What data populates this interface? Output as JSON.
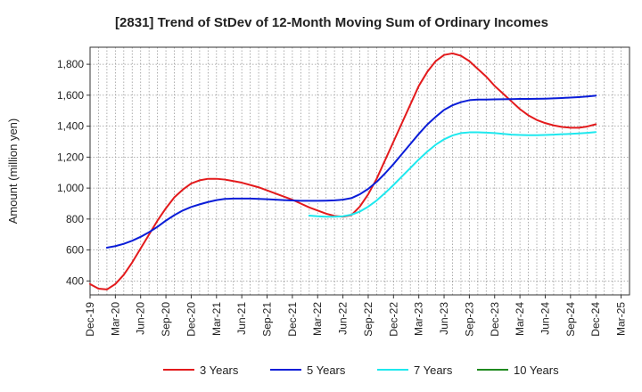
{
  "chart_data": {
    "type": "line",
    "title": "[2831]  Trend of StDev of 12-Month Moving Sum of Ordinary Incomes",
    "xlabel": "",
    "ylabel": "Amount (million yen)",
    "ylim": [
      310,
      1910
    ],
    "yticks": [
      400,
      600,
      800,
      1000,
      1200,
      1400,
      1600,
      1800
    ],
    "ytick_labels": [
      "400",
      "600",
      "800",
      "1,000",
      "1,200",
      "1,400",
      "1,600",
      "1,800"
    ],
    "x_min": 0,
    "x_max": 64,
    "xticks": [
      0,
      3,
      6,
      9,
      12,
      15,
      18,
      21,
      24,
      27,
      30,
      33,
      36,
      39,
      42,
      45,
      48,
      51,
      54,
      57,
      60,
      63
    ],
    "xtick_labels": [
      "Dec-19",
      "Mar-20",
      "Jun-20",
      "Sep-20",
      "Dec-20",
      "Mar-21",
      "Jun-21",
      "Sep-21",
      "Dec-21",
      "Mar-22",
      "Jun-22",
      "Sep-22",
      "Dec-22",
      "Mar-23",
      "Jun-23",
      "Sep-23",
      "Dec-23",
      "Mar-24",
      "Jun-24",
      "Sep-24",
      "Dec-24",
      "Mar-25"
    ],
    "grid": true,
    "legend_position": "bottom",
    "series": [
      {
        "name": "3 Years",
        "color": "#e31a1c",
        "x": [
          0,
          1,
          2,
          3,
          4,
          5,
          6,
          7,
          8,
          9,
          10,
          11,
          12,
          13,
          14,
          15,
          16,
          17,
          18,
          19,
          20,
          21,
          22,
          23,
          24,
          25,
          26,
          27,
          28,
          29,
          30,
          31,
          32,
          33,
          34,
          35,
          36,
          37,
          38,
          39,
          40,
          41,
          42,
          43,
          44,
          45,
          46,
          47,
          48,
          49,
          50,
          51,
          52,
          53,
          54,
          55,
          56,
          57,
          58,
          59,
          60
        ],
        "values": [
          380,
          350,
          345,
          380,
          440,
          520,
          610,
          700,
          790,
          870,
          940,
          990,
          1030,
          1050,
          1060,
          1060,
          1055,
          1045,
          1035,
          1020,
          1005,
          985,
          965,
          945,
          925,
          900,
          875,
          855,
          835,
          820,
          815,
          825,
          880,
          960,
          1060,
          1180,
          1300,
          1420,
          1540,
          1660,
          1750,
          1820,
          1860,
          1870,
          1855,
          1820,
          1770,
          1720,
          1660,
          1610,
          1560,
          1510,
          1470,
          1440,
          1420,
          1405,
          1395,
          1390,
          1390,
          1398,
          1412
        ]
      },
      {
        "name": "5 Years",
        "color": "#0a1dd8",
        "x": [
          2,
          3,
          4,
          5,
          6,
          7,
          8,
          9,
          10,
          11,
          12,
          13,
          14,
          15,
          16,
          17,
          18,
          19,
          20,
          21,
          22,
          23,
          24,
          25,
          26,
          27,
          28,
          29,
          30,
          31,
          32,
          33,
          34,
          35,
          36,
          37,
          38,
          39,
          40,
          41,
          42,
          43,
          44,
          45,
          46,
          47,
          48,
          49,
          50,
          51,
          52,
          53,
          54,
          55,
          56,
          57,
          58,
          59,
          60
        ],
        "values": [
          615,
          625,
          640,
          660,
          685,
          715,
          750,
          790,
          825,
          855,
          878,
          895,
          910,
          922,
          930,
          932,
          932,
          932,
          930,
          928,
          925,
          922,
          920,
          918,
          918,
          918,
          919,
          921,
          925,
          935,
          960,
          995,
          1040,
          1095,
          1155,
          1220,
          1285,
          1350,
          1410,
          1460,
          1505,
          1535,
          1555,
          1568,
          1572,
          1572,
          1573,
          1574,
          1575,
          1576,
          1576,
          1577,
          1578,
          1580,
          1582,
          1585,
          1588,
          1592,
          1597
        ]
      },
      {
        "name": "7 Years",
        "color": "#1ee8ee",
        "x": [
          26,
          27,
          28,
          29,
          30,
          31,
          32,
          33,
          34,
          35,
          36,
          37,
          38,
          39,
          40,
          41,
          42,
          43,
          44,
          45,
          46,
          47,
          48,
          49,
          50,
          51,
          52,
          53,
          54,
          55,
          56,
          57,
          58,
          59,
          60
        ],
        "values": [
          822,
          818,
          815,
          815,
          818,
          828,
          848,
          880,
          920,
          968,
          1020,
          1075,
          1130,
          1185,
          1235,
          1280,
          1315,
          1340,
          1355,
          1360,
          1360,
          1358,
          1355,
          1350,
          1345,
          1343,
          1342,
          1342,
          1343,
          1345,
          1348,
          1350,
          1353,
          1357,
          1362
        ]
      },
      {
        "name": "10 Years",
        "color": "#1f8a1f",
        "x": [],
        "values": []
      }
    ]
  }
}
